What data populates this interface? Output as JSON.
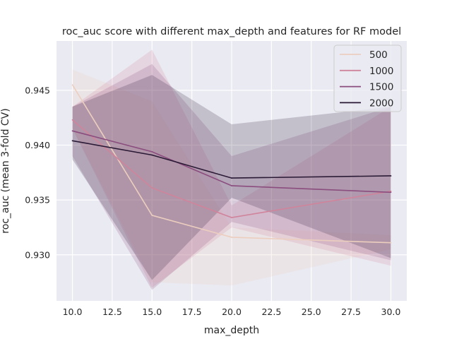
{
  "chart_data": {
    "type": "line",
    "title": "roc_auc score with different max_depth and features for RF model",
    "xlabel": "max_depth",
    "ylabel": "roc_auc (mean 3-fold CV)",
    "xlim": [
      9.0,
      31.0
    ],
    "ylim": [
      0.9258,
      0.9495
    ],
    "xticks": [
      10.0,
      12.5,
      15.0,
      17.5,
      20.0,
      22.5,
      25.0,
      27.5,
      30.0
    ],
    "xtick_labels": [
      "10.0",
      "12.5",
      "15.0",
      "17.5",
      "20.0",
      "22.5",
      "25.0",
      "27.5",
      "30.0"
    ],
    "yticks": [
      0.93,
      0.935,
      0.94,
      0.945
    ],
    "ytick_labels": [
      "0.930",
      "0.935",
      "0.940",
      "0.945"
    ],
    "grid": true,
    "legend_position": "top-right",
    "x": [
      10,
      15,
      20,
      30
    ],
    "series": [
      {
        "name": "500",
        "color": "#eccebf",
        "values": [
          0.9455,
          0.9336,
          0.9316,
          0.9311
        ],
        "ci_lower": [
          0.9415,
          0.9275,
          0.9272,
          0.9305
        ],
        "ci_upper": [
          0.9469,
          0.944,
          0.9325,
          0.9318
        ]
      },
      {
        "name": "1000",
        "color": "#d0849b",
        "values": [
          0.9423,
          0.9361,
          0.9334,
          0.9358
        ],
        "ci_lower": [
          0.9415,
          0.927,
          0.9325,
          0.929
        ],
        "ci_upper": [
          0.9435,
          0.9487,
          0.9345,
          0.9435
        ]
      },
      {
        "name": "1500",
        "color": "#8a4d7e",
        "values": [
          0.9413,
          0.9394,
          0.9363,
          0.9357
        ],
        "ci_lower": [
          0.939,
          0.9268,
          0.933,
          0.9295
        ],
        "ci_upper": [
          0.9435,
          0.9474,
          0.939,
          0.9435
        ]
      },
      {
        "name": "2000",
        "color": "#2a1a35",
        "values": [
          0.9404,
          0.9391,
          0.937,
          0.9372
        ],
        "ci_lower": [
          0.9387,
          0.9277,
          0.9352,
          0.9297
        ],
        "ci_upper": [
          0.9435,
          0.9464,
          0.9419,
          0.9435
        ]
      }
    ]
  }
}
